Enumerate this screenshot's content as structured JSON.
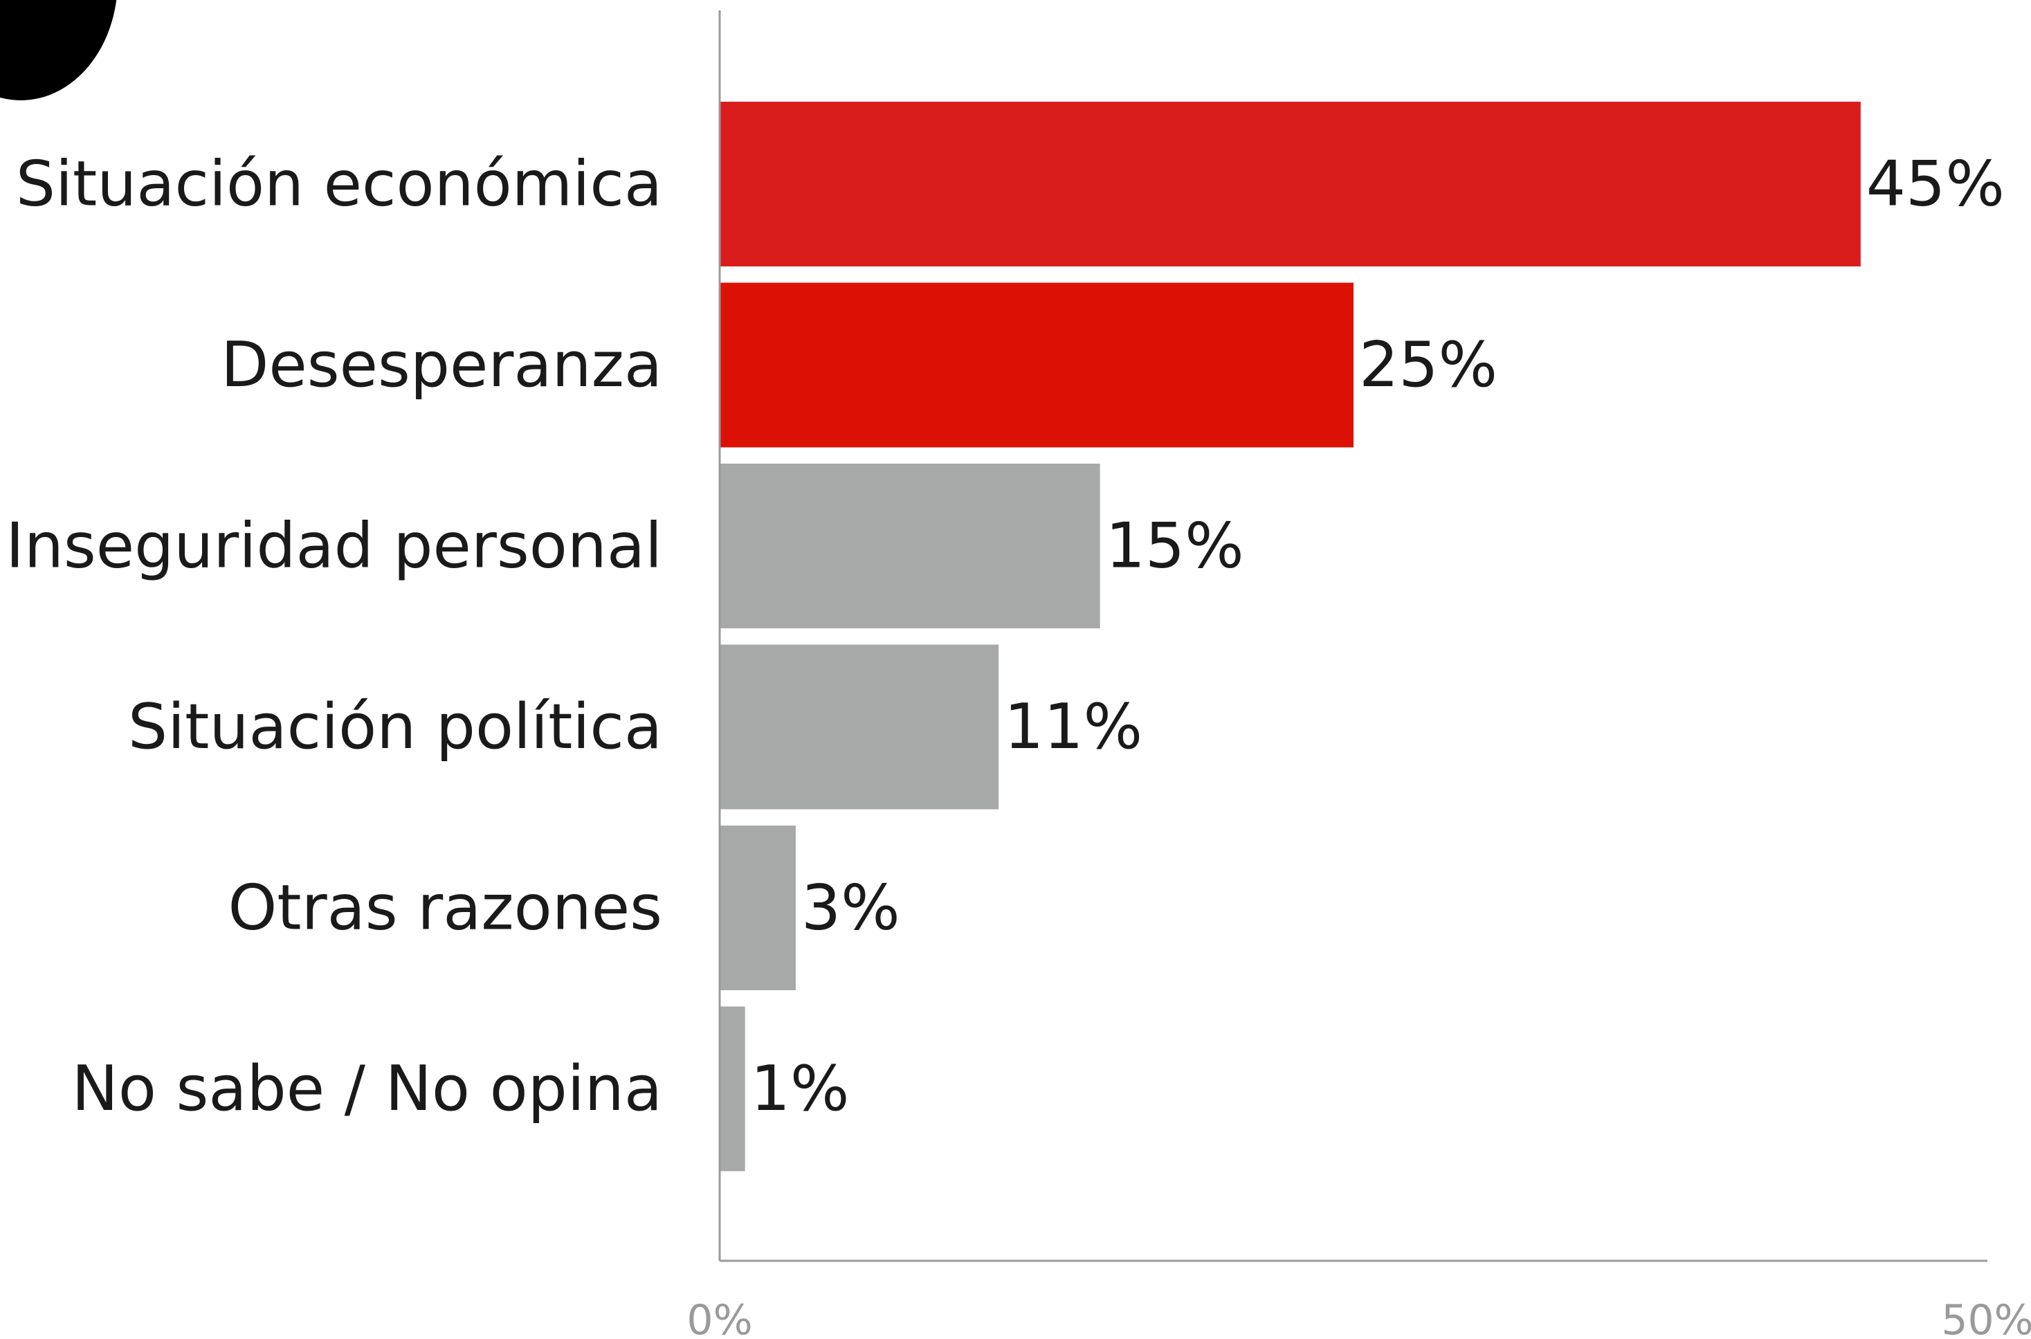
{
  "chart_data": {
    "type": "bar",
    "orientation": "horizontal",
    "categories": [
      "Situación económica",
      "Desesperanza",
      "Inseguridad personal",
      "Situación política",
      "Otras razones",
      "No sabe / No opina"
    ],
    "values": [
      45,
      25,
      15,
      11,
      3,
      1
    ],
    "value_labels": [
      "45%",
      "25%",
      "15%",
      "11%",
      "3%",
      "1%"
    ],
    "bar_colors": [
      "#d91c1c",
      "#dc1106",
      "#a7a9a8",
      "#a7a9a8",
      "#a7a9a8",
      "#a7a9a8"
    ],
    "xlim": [
      0,
      50
    ],
    "x_ticks": [
      "0%",
      "50%"
    ],
    "title": "",
    "xlabel": "",
    "ylabel": "",
    "grid": false,
    "legend": "none"
  },
  "colors": {
    "highlight": "#d91c1c",
    "neutral": "#a7a9a8",
    "axis": "#9a9a9a",
    "corner_shape": "#000000"
  }
}
